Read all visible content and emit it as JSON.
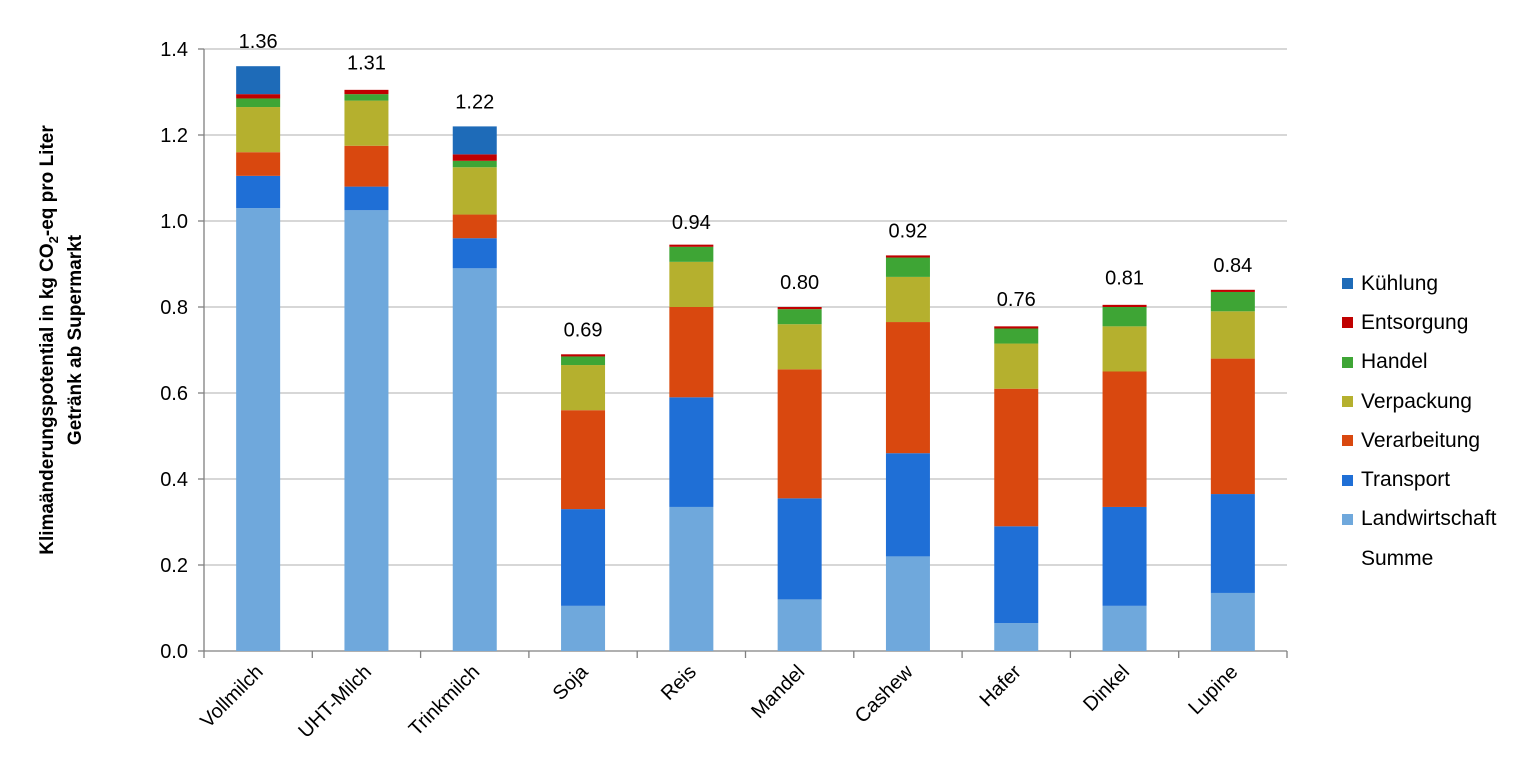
{
  "chart_data": {
    "type": "bar",
    "stacked": true,
    "ylabel_line1_pre": "Klimaänderungspotential in kg CO",
    "ylabel_line1_sub": "2",
    "ylabel_line1_post": "-eq pro Liter",
    "ylabel_line2": "Getränk ab Supermarkt",
    "ylim": [
      0,
      1.4
    ],
    "yticks": [
      "0.0",
      "0.2",
      "0.4",
      "0.6",
      "0.8",
      "1.0",
      "1.2",
      "1.4"
    ],
    "grid": true,
    "legend_position": "right",
    "categories": [
      "Vollmilch",
      "UHT-Milch",
      "Trinkmilch",
      "Soja",
      "Reis",
      "Mandel",
      "Cashew",
      "Hafer",
      "Dinkel",
      "Lupine"
    ],
    "series": [
      {
        "name": "Landwirtschaft",
        "color": "#6FA8DC",
        "values": [
          1.03,
          1.025,
          0.89,
          0.105,
          0.335,
          0.12,
          0.22,
          0.065,
          0.105,
          0.135
        ]
      },
      {
        "name": "Transport",
        "color": "#1F6FD6",
        "values": [
          0.075,
          0.055,
          0.07,
          0.225,
          0.255,
          0.235,
          0.24,
          0.225,
          0.23,
          0.23
        ]
      },
      {
        "name": "Verarbeitung",
        "color": "#D9480F",
        "values": [
          0.055,
          0.095,
          0.055,
          0.23,
          0.21,
          0.3,
          0.305,
          0.32,
          0.315,
          0.315
        ]
      },
      {
        "name": "Verpackung",
        "color": "#B5B02E",
        "values": [
          0.105,
          0.105,
          0.11,
          0.105,
          0.105,
          0.105,
          0.105,
          0.105,
          0.105,
          0.11
        ]
      },
      {
        "name": "Handel",
        "color": "#3EA535",
        "values": [
          0.02,
          0.015,
          0.015,
          0.02,
          0.035,
          0.035,
          0.045,
          0.035,
          0.045,
          0.045
        ]
      },
      {
        "name": "Entsorgung",
        "color": "#C00000",
        "values": [
          0.01,
          0.01,
          0.015,
          0.005,
          0.005,
          0.005,
          0.005,
          0.005,
          0.005,
          0.005
        ]
      },
      {
        "name": "Kühlung",
        "color": "#1E6BB8",
        "values": [
          0.065,
          0,
          0.065,
          0,
          0,
          0,
          0,
          0,
          0,
          0
        ]
      }
    ],
    "totals": [
      1.36,
      1.31,
      1.22,
      0.69,
      0.94,
      0.8,
      0.92,
      0.76,
      0.81,
      0.84
    ],
    "total_labels": [
      "1.36",
      "1.31",
      "1.22",
      "0.69",
      "0.94",
      "0.80",
      "0.92",
      "0.76",
      "0.81",
      "0.84"
    ],
    "legend": [
      "Kühlung",
      "Entsorgung",
      "Handel",
      "Verpackung",
      "Verarbeitung",
      "Transport",
      "Landwirtschaft",
      "Summe"
    ]
  }
}
